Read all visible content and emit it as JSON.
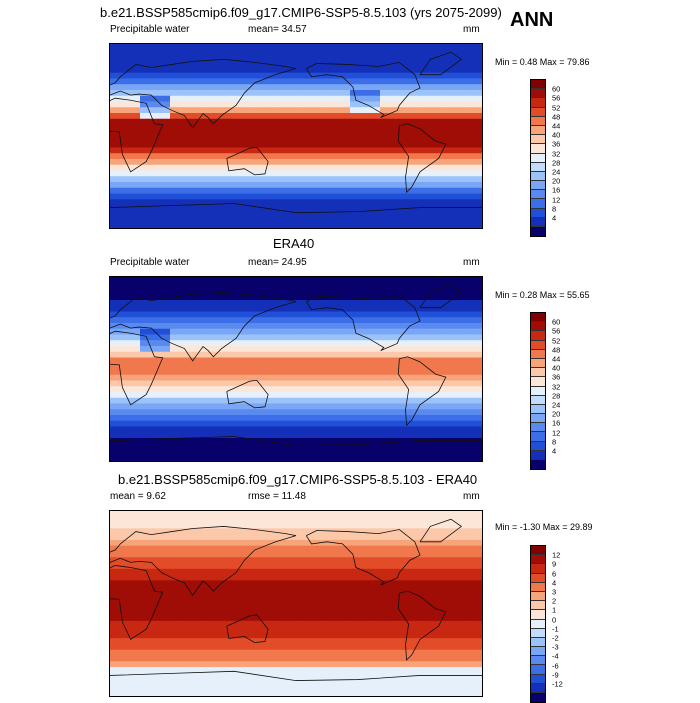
{
  "header": {
    "main_title": "b.e21.BSSP585cmip6.f09_g17.CMIP6-SSP5-8.5.103 (yrs 2075-2099)",
    "season": "ANN"
  },
  "panels": [
    {
      "id": "model",
      "title": "",
      "left_label": "Precipitable water",
      "center_label": "mean=  34.57",
      "units": "mm",
      "minmax": "Min =   0.48 Max =  79.86",
      "palette": [
        "#08006b",
        "#1430b8",
        "#2150d8",
        "#3c6ee8",
        "#5a8af0",
        "#7aa7f5",
        "#9cc2fa",
        "#c2dcfc",
        "#e6f0fb",
        "#fbe6d8",
        "#fbc8aa",
        "#f7a47a",
        "#f0784c",
        "#e24c28",
        "#c82812",
        "#a00c06",
        "#820000"
      ],
      "levels": [
        "60",
        "56",
        "52",
        "48",
        "44",
        "40",
        "36",
        "32",
        "28",
        "24",
        "20",
        "16",
        "12",
        "8",
        "4"
      ],
      "style": "model"
    },
    {
      "id": "obs",
      "title": "ERA40",
      "left_label": "Precipitable water",
      "center_label": "mean=  24.95",
      "units": "mm",
      "minmax": "Min =   0.28 Max =  55.65",
      "palette": [
        "#08006b",
        "#1430b8",
        "#2150d8",
        "#3c6ee8",
        "#5a8af0",
        "#7aa7f5",
        "#9cc2fa",
        "#c2dcfc",
        "#e6f0fb",
        "#fbe6d8",
        "#fbc8aa",
        "#f7a47a",
        "#f0784c",
        "#e24c28",
        "#c82812",
        "#a00c06",
        "#820000"
      ],
      "levels": [
        "60",
        "56",
        "52",
        "48",
        "44",
        "40",
        "36",
        "32",
        "28",
        "24",
        "20",
        "16",
        "12",
        "8",
        "4"
      ],
      "style": "obs"
    },
    {
      "id": "diff",
      "title": "b.e21.BSSP585cmip6.f09_g17.CMIP6-SSP5-8.5.103 - ERA40",
      "left_label": "mean =   9.62",
      "center_label": "rmse =  11.48",
      "units": "mm",
      "minmax": "Min =  -1.30 Max =  29.89",
      "palette": [
        "#08006b",
        "#1430b8",
        "#2150d8",
        "#3c6ee8",
        "#5a8af0",
        "#7aa7f5",
        "#9cc2fa",
        "#c2dcfc",
        "#e6f0fb",
        "#fbe6d8",
        "#fbc8aa",
        "#f7a47a",
        "#f0784c",
        "#e24c28",
        "#c82812",
        "#a00c06",
        "#820000"
      ],
      "levels": [
        "12",
        "9",
        "6",
        "4",
        "3",
        "2",
        "1",
        "0",
        "-1",
        "-2",
        "-3",
        "-4",
        "-6",
        "-9",
        "-12"
      ],
      "style": "diff"
    }
  ]
}
